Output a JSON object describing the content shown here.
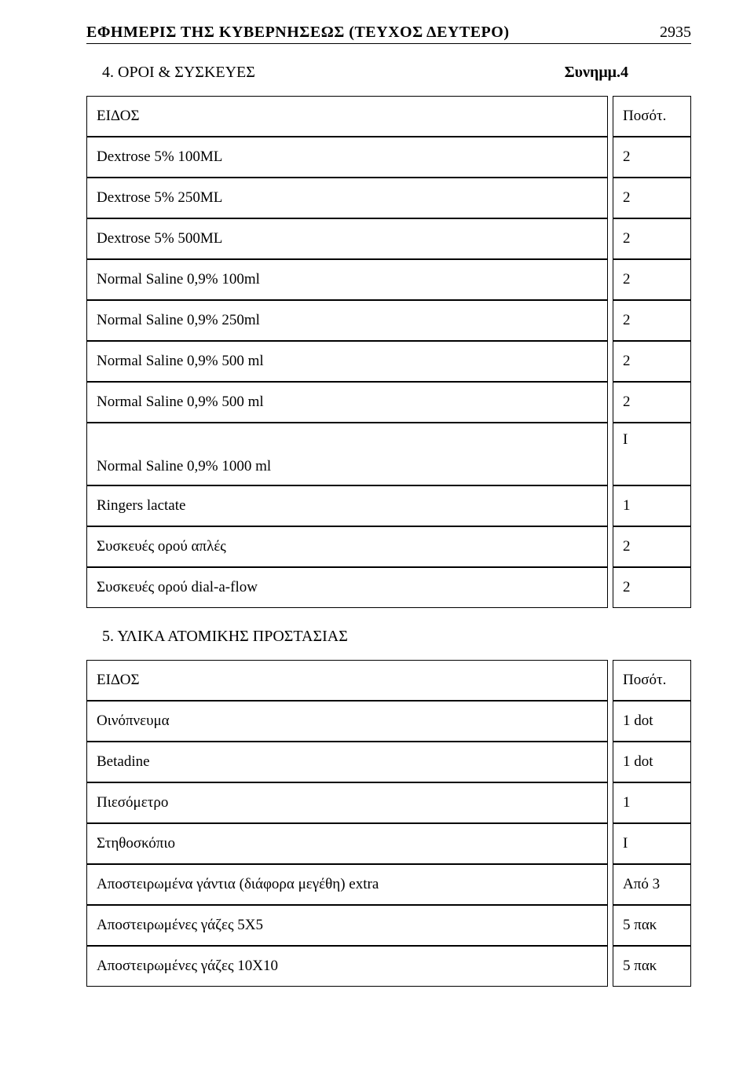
{
  "header": {
    "title": "ΕΦΗΜΕΡΙΣ ΤΗΣ ΚΥΒΕΡΝΗΣΕΩΣ (ΤΕΥΧΟΣ ΔΕΥΤΕΡΟ)",
    "page_number": "2935"
  },
  "section1": {
    "heading": "4. ΟΡΟΙ & ΣΥΣΚΕΥΕΣ",
    "annex": "Συνημμ.4"
  },
  "table1": {
    "header": {
      "left": "ΕΙΔΟΣ",
      "right": "Ποσότ."
    },
    "rows": [
      {
        "left": "Dextrose 5%   100ML",
        "right": "2"
      },
      {
        "left": "Dextrose 5%   250ML",
        "right": "2"
      },
      {
        "left": "Dextrose 5%   500ML",
        "right": "2"
      },
      {
        "left": "Normal Saline 0,9%  100ml",
        "right": "2"
      },
      {
        "left": "Normal Saline 0,9%  250ml",
        "right": "2"
      },
      {
        "left": "Normal Saline 0,9%  500 ml",
        "right": "2"
      },
      {
        "left": "Normal Saline 0,9%  500 ml",
        "right": "2"
      },
      {
        "left": "Normal Saline 0,9%  1000 ml",
        "right": "Ι",
        "tall": true
      },
      {
        "left": "Ringers lactate",
        "right": "1"
      },
      {
        "left": "Συσκευές ορού απλές",
        "right": "2"
      },
      {
        "left": "Συσκευές ορού dial-a-flow",
        "right": "2"
      }
    ]
  },
  "section2": {
    "heading": "5. ΥΛΙΚΑ ΑΤΟΜΙΚΗΣ ΠΡΟΣΤΑΣΙΑΣ"
  },
  "table2": {
    "header": {
      "left": "ΕΙΔΟΣ",
      "right": "Ποσότ."
    },
    "rows": [
      {
        "left": "Οινόπνευμα",
        "right": "1 dot"
      },
      {
        "left": "Betadine",
        "right": "1 dot"
      },
      {
        "left": "Πιεσόμετρο",
        "right": "1"
      },
      {
        "left": "Στηθοσκόπιο",
        "right": "Ι"
      },
      {
        "left": "Αποστειρωμένα γάντια (διάφορα μεγέθη) extra",
        "right": "Από 3"
      },
      {
        "left": "Αποστειρωμένες γάζες 5Χ5",
        "right": "5 πακ"
      },
      {
        "left": "Αποστειρωμένες γάζες 10Χ10",
        "right": "5 πακ"
      }
    ]
  }
}
